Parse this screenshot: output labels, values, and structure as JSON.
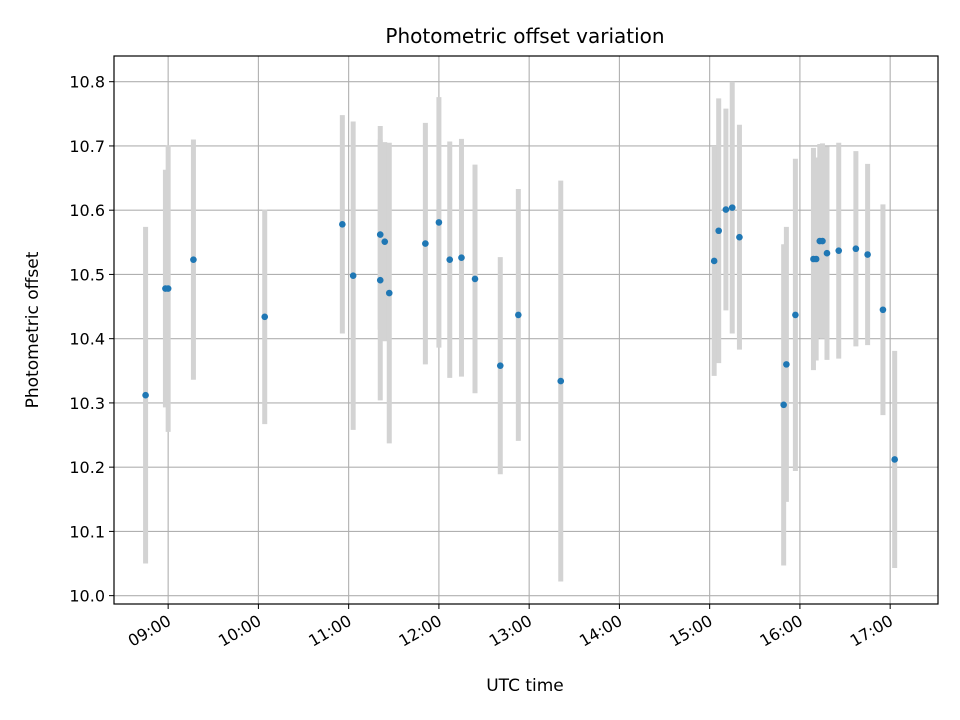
{
  "chart_data": {
    "type": "scatter",
    "title": "Photometric offset variation",
    "xlabel": "UTC time",
    "ylabel": "Photometric offset",
    "grid": true,
    "x_unit": "hours (UTC)",
    "xlim": [
      8.4,
      17.53
    ],
    "ylim": [
      9.987,
      10.84
    ],
    "x_ticks": [
      9,
      10,
      11,
      12,
      13,
      14,
      15,
      16,
      17
    ],
    "x_tick_labels": [
      "09:00",
      "10:00",
      "11:00",
      "12:00",
      "13:00",
      "14:00",
      "15:00",
      "16:00",
      "17:00"
    ],
    "y_ticks": [
      10.0,
      10.1,
      10.2,
      10.3,
      10.4,
      10.5,
      10.6,
      10.7,
      10.8
    ],
    "y_tick_labels": [
      "10.0",
      "10.1",
      "10.2",
      "10.3",
      "10.4",
      "10.5",
      "10.6",
      "10.7",
      "10.8"
    ],
    "point_color": "#1f77b4",
    "errorbar_color": "#d3d3d3",
    "series": [
      {
        "name": "offset",
        "points": [
          {
            "x": 8.75,
            "y": 10.312,
            "lo": 10.05,
            "hi": 10.574
          },
          {
            "x": 8.97,
            "y": 10.478,
            "lo": 10.293,
            "hi": 10.663
          },
          {
            "x": 9.0,
            "y": 10.478,
            "lo": 10.255,
            "hi": 10.701
          },
          {
            "x": 9.28,
            "y": 10.523,
            "lo": 10.336,
            "hi": 10.71
          },
          {
            "x": 10.07,
            "y": 10.434,
            "lo": 10.267,
            "hi": 10.601
          },
          {
            "x": 10.93,
            "y": 10.578,
            "lo": 10.408,
            "hi": 10.748
          },
          {
            "x": 11.05,
            "y": 10.498,
            "lo": 10.258,
            "hi": 10.738
          },
          {
            "x": 11.35,
            "y": 10.491,
            "lo": 10.304,
            "hi": 10.731
          },
          {
            "x": 11.35,
            "y": 10.562,
            "lo": 10.414,
            "hi": 10.71
          },
          {
            "x": 11.4,
            "y": 10.551,
            "lo": 10.396,
            "hi": 10.706
          },
          {
            "x": 11.45,
            "y": 10.471,
            "lo": 10.237,
            "hi": 10.705
          },
          {
            "x": 11.85,
            "y": 10.548,
            "lo": 10.36,
            "hi": 10.736
          },
          {
            "x": 12.0,
            "y": 10.581,
            "lo": 10.386,
            "hi": 10.776
          },
          {
            "x": 12.12,
            "y": 10.523,
            "lo": 10.339,
            "hi": 10.707
          },
          {
            "x": 12.25,
            "y": 10.526,
            "lo": 10.341,
            "hi": 10.711
          },
          {
            "x": 12.4,
            "y": 10.493,
            "lo": 10.315,
            "hi": 10.671
          },
          {
            "x": 12.68,
            "y": 10.358,
            "lo": 10.189,
            "hi": 10.527
          },
          {
            "x": 12.88,
            "y": 10.437,
            "lo": 10.241,
            "hi": 10.633
          },
          {
            "x": 13.35,
            "y": 10.334,
            "lo": 10.022,
            "hi": 10.646
          },
          {
            "x": 15.05,
            "y": 10.521,
            "lo": 10.342,
            "hi": 10.7
          },
          {
            "x": 15.1,
            "y": 10.568,
            "lo": 10.362,
            "hi": 10.774
          },
          {
            "x": 15.18,
            "y": 10.601,
            "lo": 10.444,
            "hi": 10.758
          },
          {
            "x": 15.25,
            "y": 10.604,
            "lo": 10.408,
            "hi": 10.8
          },
          {
            "x": 15.33,
            "y": 10.558,
            "lo": 10.383,
            "hi": 10.733
          },
          {
            "x": 15.82,
            "y": 10.297,
            "lo": 10.047,
            "hi": 10.547
          },
          {
            "x": 15.85,
            "y": 10.36,
            "lo": 10.146,
            "hi": 10.574
          },
          {
            "x": 15.95,
            "y": 10.437,
            "lo": 10.194,
            "hi": 10.68
          },
          {
            "x": 16.15,
            "y": 10.524,
            "lo": 10.351,
            "hi": 10.697
          },
          {
            "x": 16.18,
            "y": 10.524,
            "lo": 10.366,
            "hi": 10.682
          },
          {
            "x": 16.22,
            "y": 10.552,
            "lo": 10.401,
            "hi": 10.703
          },
          {
            "x": 16.25,
            "y": 10.552,
            "lo": 10.4,
            "hi": 10.704
          },
          {
            "x": 16.3,
            "y": 10.533,
            "lo": 10.367,
            "hi": 10.699
          },
          {
            "x": 16.43,
            "y": 10.537,
            "lo": 10.369,
            "hi": 10.705
          },
          {
            "x": 16.62,
            "y": 10.54,
            "lo": 10.388,
            "hi": 10.692
          },
          {
            "x": 16.75,
            "y": 10.531,
            "lo": 10.39,
            "hi": 10.672
          },
          {
            "x": 16.92,
            "y": 10.445,
            "lo": 10.281,
            "hi": 10.609
          },
          {
            "x": 17.05,
            "y": 10.212,
            "lo": 10.043,
            "hi": 10.381
          }
        ]
      }
    ]
  }
}
